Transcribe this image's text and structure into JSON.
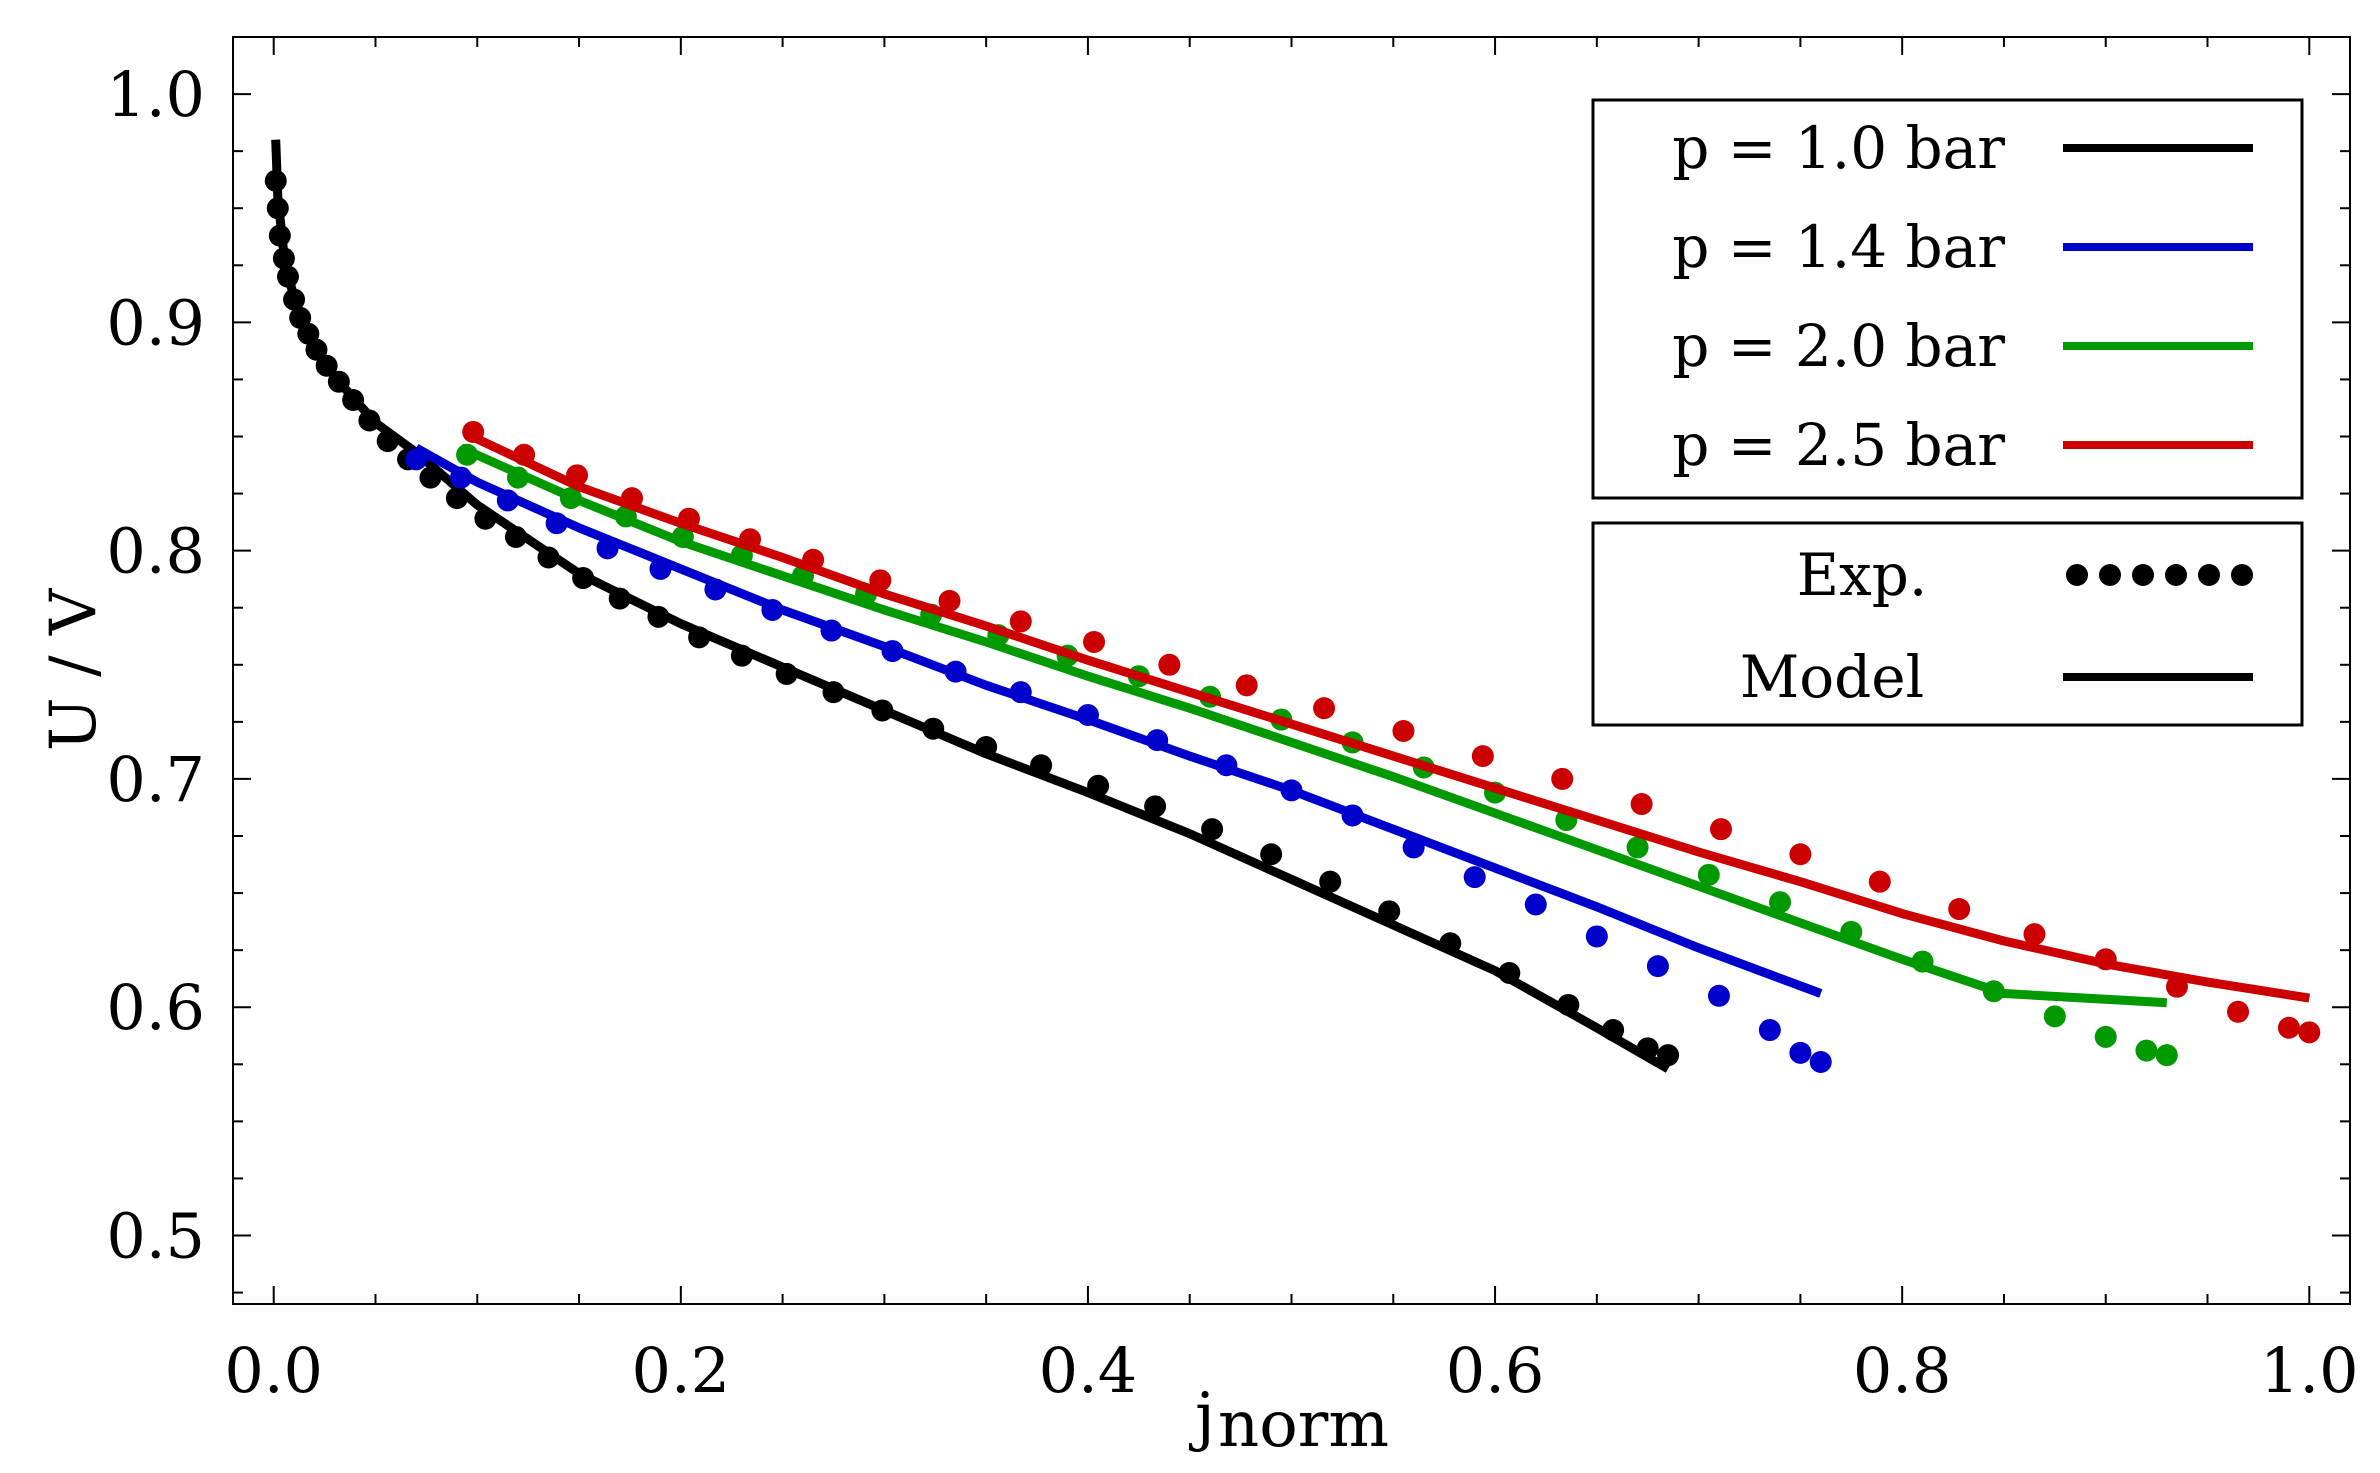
{
  "chart_data": {
    "type": "line",
    "title": "",
    "xlabel_main": "j",
    "xlabel_sub": "norm",
    "ylabel": "U / V",
    "xlim": [
      -0.02,
      1.02
    ],
    "ylim": [
      0.47,
      1.025
    ],
    "xticks": [
      0.0,
      0.2,
      0.4,
      0.6,
      0.8,
      1.0
    ],
    "xtick_labels": [
      "0.0",
      "0.2",
      "0.4",
      "0.6",
      "0.8",
      "1.0"
    ],
    "yticks": [
      0.5,
      0.6,
      0.7,
      0.8,
      0.9,
      1.0
    ],
    "ytick_labels": [
      "0.5",
      "0.6",
      "0.7",
      "0.8",
      "0.9",
      "1.0"
    ],
    "grid": false,
    "legend_placement": "top-right",
    "series": [
      {
        "name": "p = 1.0 bar",
        "color": "#000000",
        "model": [
          [
            0.001,
            0.98
          ],
          [
            0.002,
            0.955
          ],
          [
            0.005,
            0.93
          ],
          [
            0.01,
            0.91
          ],
          [
            0.02,
            0.89
          ],
          [
            0.03,
            0.876
          ],
          [
            0.05,
            0.856
          ],
          [
            0.07,
            0.843
          ],
          [
            0.1,
            0.82
          ],
          [
            0.15,
            0.79
          ],
          [
            0.2,
            0.768
          ],
          [
            0.25,
            0.749
          ],
          [
            0.3,
            0.73
          ],
          [
            0.35,
            0.711
          ],
          [
            0.4,
            0.694
          ],
          [
            0.45,
            0.676
          ],
          [
            0.5,
            0.656
          ],
          [
            0.55,
            0.636
          ],
          [
            0.6,
            0.616
          ],
          [
            0.65,
            0.591
          ],
          [
            0.685,
            0.573
          ]
        ],
        "exp": [
          [
            0.001,
            0.962
          ],
          [
            0.002,
            0.95
          ],
          [
            0.003,
            0.938
          ],
          [
            0.005,
            0.928
          ],
          [
            0.007,
            0.92
          ],
          [
            0.01,
            0.91
          ],
          [
            0.013,
            0.902
          ],
          [
            0.017,
            0.895
          ],
          [
            0.021,
            0.888
          ],
          [
            0.026,
            0.881
          ],
          [
            0.032,
            0.874
          ],
          [
            0.039,
            0.866
          ],
          [
            0.047,
            0.857
          ],
          [
            0.056,
            0.848
          ],
          [
            0.066,
            0.84
          ],
          [
            0.077,
            0.832
          ],
          [
            0.09,
            0.823
          ],
          [
            0.104,
            0.814
          ],
          [
            0.119,
            0.806
          ],
          [
            0.135,
            0.797
          ],
          [
            0.152,
            0.788
          ],
          [
            0.17,
            0.779
          ],
          [
            0.189,
            0.771
          ],
          [
            0.209,
            0.762
          ],
          [
            0.23,
            0.754
          ],
          [
            0.252,
            0.746
          ],
          [
            0.275,
            0.738
          ],
          [
            0.299,
            0.73
          ],
          [
            0.324,
            0.722
          ],
          [
            0.35,
            0.714
          ],
          [
            0.377,
            0.706
          ],
          [
            0.405,
            0.697
          ],
          [
            0.433,
            0.688
          ],
          [
            0.461,
            0.678
          ],
          [
            0.49,
            0.667
          ],
          [
            0.519,
            0.655
          ],
          [
            0.548,
            0.642
          ],
          [
            0.578,
            0.628
          ],
          [
            0.607,
            0.615
          ],
          [
            0.636,
            0.601
          ],
          [
            0.658,
            0.59
          ],
          [
            0.675,
            0.582
          ],
          [
            0.685,
            0.579
          ]
        ]
      },
      {
        "name": "p = 1.4 bar",
        "color": "#0000cc",
        "model": [
          [
            0.07,
            0.845
          ],
          [
            0.1,
            0.83
          ],
          [
            0.15,
            0.81
          ],
          [
            0.2,
            0.792
          ],
          [
            0.25,
            0.774
          ],
          [
            0.3,
            0.758
          ],
          [
            0.35,
            0.741
          ],
          [
            0.4,
            0.726
          ],
          [
            0.45,
            0.71
          ],
          [
            0.5,
            0.695
          ],
          [
            0.55,
            0.678
          ],
          [
            0.6,
            0.661
          ],
          [
            0.65,
            0.644
          ],
          [
            0.7,
            0.626
          ],
          [
            0.76,
            0.606
          ]
        ],
        "exp": [
          [
            0.07,
            0.84
          ],
          [
            0.092,
            0.832
          ],
          [
            0.115,
            0.822
          ],
          [
            0.139,
            0.812
          ],
          [
            0.164,
            0.801
          ],
          [
            0.19,
            0.792
          ],
          [
            0.217,
            0.783
          ],
          [
            0.245,
            0.774
          ],
          [
            0.274,
            0.765
          ],
          [
            0.304,
            0.756
          ],
          [
            0.335,
            0.747
          ],
          [
            0.367,
            0.738
          ],
          [
            0.4,
            0.728
          ],
          [
            0.434,
            0.717
          ],
          [
            0.468,
            0.706
          ],
          [
            0.5,
            0.695
          ],
          [
            0.53,
            0.684
          ],
          [
            0.56,
            0.67
          ],
          [
            0.59,
            0.657
          ],
          [
            0.62,
            0.645
          ],
          [
            0.65,
            0.631
          ],
          [
            0.68,
            0.618
          ],
          [
            0.71,
            0.605
          ],
          [
            0.735,
            0.59
          ],
          [
            0.75,
            0.58
          ],
          [
            0.76,
            0.576
          ]
        ]
      },
      {
        "name": "p = 2.0 bar",
        "color": "#009900",
        "model": [
          [
            0.092,
            0.845
          ],
          [
            0.15,
            0.822
          ],
          [
            0.2,
            0.804
          ],
          [
            0.25,
            0.789
          ],
          [
            0.3,
            0.774
          ],
          [
            0.35,
            0.76
          ],
          [
            0.4,
            0.745
          ],
          [
            0.45,
            0.731
          ],
          [
            0.5,
            0.716
          ],
          [
            0.55,
            0.701
          ],
          [
            0.6,
            0.685
          ],
          [
            0.65,
            0.669
          ],
          [
            0.7,
            0.653
          ],
          [
            0.75,
            0.637
          ],
          [
            0.8,
            0.621
          ],
          [
            0.85,
            0.606
          ],
          [
            0.93,
            0.602
          ]
        ],
        "exp": [
          [
            0.095,
            0.842
          ],
          [
            0.12,
            0.832
          ],
          [
            0.146,
            0.823
          ],
          [
            0.173,
            0.815
          ],
          [
            0.201,
            0.806
          ],
          [
            0.23,
            0.798
          ],
          [
            0.26,
            0.789
          ],
          [
            0.291,
            0.781
          ],
          [
            0.323,
            0.772
          ],
          [
            0.356,
            0.763
          ],
          [
            0.39,
            0.754
          ],
          [
            0.425,
            0.745
          ],
          [
            0.46,
            0.736
          ],
          [
            0.495,
            0.726
          ],
          [
            0.53,
            0.716
          ],
          [
            0.565,
            0.705
          ],
          [
            0.6,
            0.694
          ],
          [
            0.635,
            0.682
          ],
          [
            0.67,
            0.67
          ],
          [
            0.705,
            0.658
          ],
          [
            0.74,
            0.646
          ],
          [
            0.775,
            0.633
          ],
          [
            0.81,
            0.62
          ],
          [
            0.845,
            0.607
          ],
          [
            0.875,
            0.596
          ],
          [
            0.9,
            0.587
          ],
          [
            0.92,
            0.581
          ],
          [
            0.93,
            0.579
          ]
        ]
      },
      {
        "name": "p = 2.5 bar",
        "color": "#cc0000",
        "model": [
          [
            0.095,
            0.851
          ],
          [
            0.15,
            0.828
          ],
          [
            0.2,
            0.812
          ],
          [
            0.25,
            0.797
          ],
          [
            0.3,
            0.781
          ],
          [
            0.35,
            0.767
          ],
          [
            0.4,
            0.752
          ],
          [
            0.45,
            0.738
          ],
          [
            0.5,
            0.724
          ],
          [
            0.55,
            0.71
          ],
          [
            0.6,
            0.696
          ],
          [
            0.65,
            0.682
          ],
          [
            0.7,
            0.668
          ],
          [
            0.75,
            0.655
          ],
          [
            0.8,
            0.641
          ],
          [
            0.85,
            0.629
          ],
          [
            0.9,
            0.619
          ],
          [
            0.95,
            0.611
          ],
          [
            1.0,
            0.604
          ]
        ],
        "exp": [
          [
            0.098,
            0.852
          ],
          [
            0.123,
            0.842
          ],
          [
            0.149,
            0.833
          ],
          [
            0.176,
            0.823
          ],
          [
            0.204,
            0.814
          ],
          [
            0.234,
            0.805
          ],
          [
            0.265,
            0.796
          ],
          [
            0.298,
            0.787
          ],
          [
            0.332,
            0.778
          ],
          [
            0.367,
            0.769
          ],
          [
            0.403,
            0.76
          ],
          [
            0.44,
            0.75
          ],
          [
            0.478,
            0.741
          ],
          [
            0.516,
            0.731
          ],
          [
            0.555,
            0.721
          ],
          [
            0.594,
            0.71
          ],
          [
            0.633,
            0.7
          ],
          [
            0.672,
            0.689
          ],
          [
            0.711,
            0.678
          ],
          [
            0.75,
            0.667
          ],
          [
            0.789,
            0.655
          ],
          [
            0.828,
            0.643
          ],
          [
            0.865,
            0.632
          ],
          [
            0.9,
            0.621
          ],
          [
            0.935,
            0.609
          ],
          [
            0.965,
            0.598
          ],
          [
            0.99,
            0.591
          ],
          [
            1.0,
            0.589
          ]
        ]
      }
    ],
    "legend_style": {
      "entries": [
        {
          "label": "Exp.",
          "style": "dots"
        },
        {
          "label": "Model",
          "style": "line"
        }
      ]
    }
  }
}
